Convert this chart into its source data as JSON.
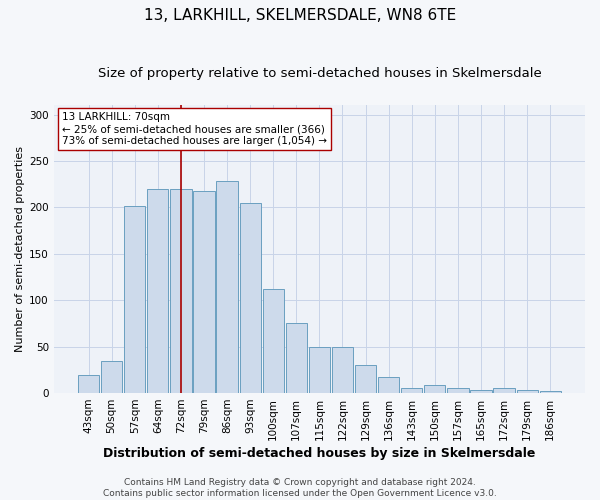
{
  "title": "13, LARKHILL, SKELMERSDALE, WN8 6TE",
  "subtitle": "Size of property relative to semi-detached houses in Skelmersdale",
  "xlabel": "Distribution of semi-detached houses by size in Skelmersdale",
  "ylabel": "Number of semi-detached properties",
  "categories": [
    "43sqm",
    "50sqm",
    "57sqm",
    "64sqm",
    "72sqm",
    "79sqm",
    "86sqm",
    "93sqm",
    "100sqm",
    "107sqm",
    "115sqm",
    "122sqm",
    "129sqm",
    "136sqm",
    "143sqm",
    "150sqm",
    "157sqm",
    "165sqm",
    "172sqm",
    "179sqm",
    "186sqm"
  ],
  "bar_values": [
    20,
    35,
    201,
    220,
    220,
    218,
    228,
    205,
    112,
    75,
    50,
    50,
    30,
    17,
    5,
    9,
    5,
    3,
    5,
    3,
    2
  ],
  "bar_color": "#cddaeb",
  "bar_edge_color": "#6a9fc0",
  "vline_x_idx": 4,
  "vline_color": "#aa0000",
  "annotation_text": "13 LARKHILL: 70sqm\n← 25% of semi-detached houses are smaller (366)\n73% of semi-detached houses are larger (1,054) →",
  "annotation_box_color": "#ffffff",
  "annotation_box_edge": "#aa0000",
  "ylim": [
    0,
    310
  ],
  "yticks": [
    0,
    50,
    100,
    150,
    200,
    250,
    300
  ],
  "grid_color": "#c8d4e8",
  "plot_bg_color": "#eef2f8",
  "fig_bg_color": "#f5f7fa",
  "title_fontsize": 11,
  "subtitle_fontsize": 9.5,
  "xlabel_fontsize": 9,
  "ylabel_fontsize": 8,
  "tick_fontsize": 7.5,
  "annot_fontsize": 7.5,
  "footer_fontsize": 6.5,
  "footer": "Contains HM Land Registry data © Crown copyright and database right 2024.\nContains public sector information licensed under the Open Government Licence v3.0."
}
